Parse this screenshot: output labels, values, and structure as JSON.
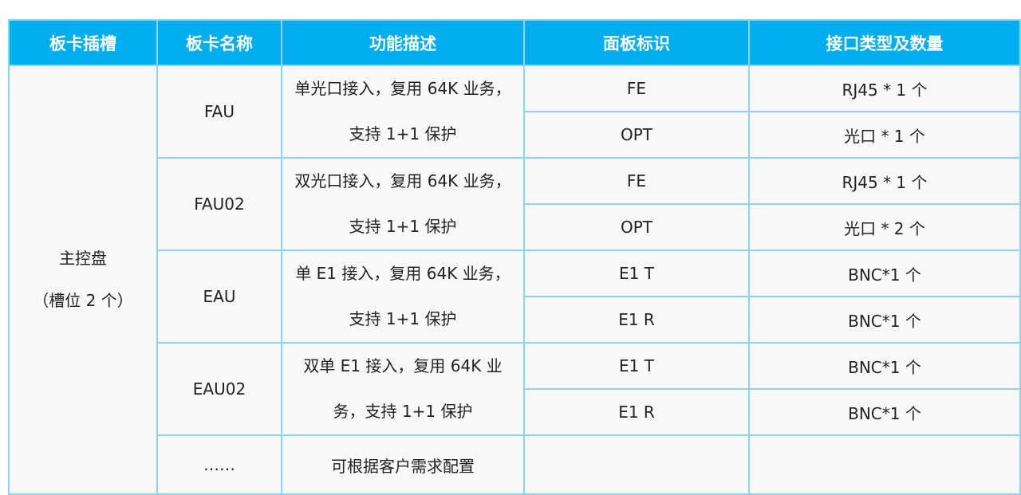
{
  "headers": [
    "板卡插槽",
    "板卡名称",
    "功能描述",
    "面板标识",
    "接口类型及数量"
  ],
  "slot": {
    "line1": "主控盘",
    "line2": "（槽位 2 个）"
  },
  "boards": [
    {
      "name": "FAU",
      "desc1": "单光口接入，复用 64K 业务，",
      "desc2": "支持 1+1 保护",
      "ports": [
        {
          "label": "FE",
          "iface": "RJ45 * 1 个"
        },
        {
          "label": "OPT",
          "iface": "光口  * 1 个"
        }
      ]
    },
    {
      "name": "FAU02",
      "desc1": "双光口接入，复用 64K 业务，",
      "desc2": "支持 1+1 保护",
      "ports": [
        {
          "label": "FE",
          "iface": "RJ45 * 1 个"
        },
        {
          "label": "OPT",
          "iface": "光口  * 2 个"
        }
      ]
    },
    {
      "name": "EAU",
      "desc1": "单 E1 接入，复用 64K 业务，",
      "desc2": "支持 1+1 保护",
      "ports": [
        {
          "label": "E1 T",
          "iface": "BNC*1 个"
        },
        {
          "label": "E1 R",
          "iface": "BNC*1 个"
        }
      ]
    },
    {
      "name": "EAU02",
      "desc1": "双单 E1 接入，复用 64K 业",
      "desc2": "务，支持 1+1 保护",
      "ports": [
        {
          "label": "E1 T",
          "iface": "BNC*1 个"
        },
        {
          "label": "E1 R",
          "iface": "BNC*1 个"
        }
      ]
    }
  ],
  "more": {
    "name": "……",
    "desc": "可根据客户需求配置"
  }
}
